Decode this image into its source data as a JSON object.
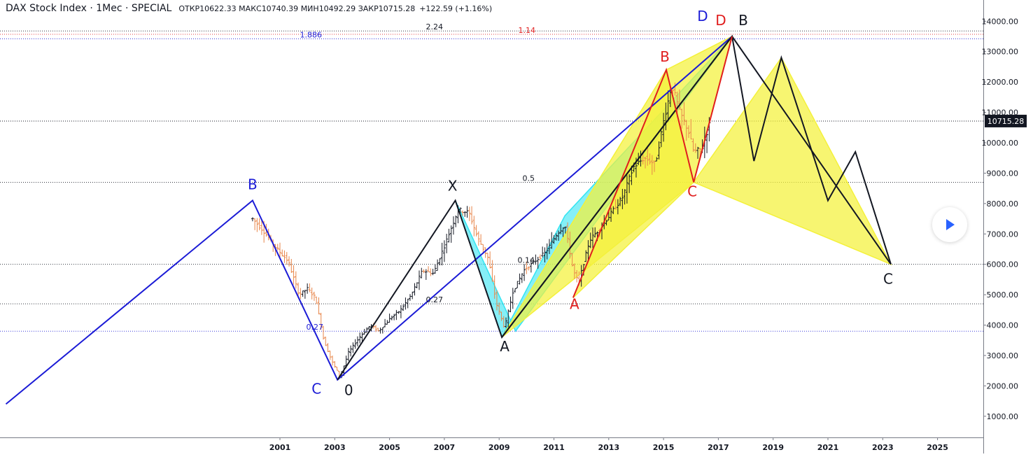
{
  "header": {
    "symbol": "DAX Stock Index · 1Мес · SPECIAL",
    "open_label": "ОТКР",
    "open": "10622.33",
    "high_label": "МАКС",
    "high": "10740.39",
    "low_label": "МИН",
    "low": "10492.29",
    "close_label": "ЗАКР",
    "close": "10715.28",
    "change": "+122.59 (+1.16%)"
  },
  "price_badge": "10715.28",
  "colors": {
    "up_bar": "#131722",
    "down_bar": "#e8864a",
    "blue": "#1b1bd6",
    "red": "#e01e1e",
    "black": "#131722",
    "yellow_fill": "#f4f13a",
    "cyan_fill": "#33e4f2"
  },
  "chart_data": {
    "type": "candlestick",
    "x_axis": {
      "type": "time",
      "ticks": [
        "2001",
        "2003",
        "2005",
        "2007",
        "2009",
        "2011",
        "2013",
        "2015",
        "2017",
        "2019",
        "2021",
        "2023",
        "2025"
      ]
    },
    "y_axis": {
      "position": "right",
      "ylim": [
        0,
        14700
      ],
      "ticks": [
        "1000.00",
        "2000.00",
        "3000.00",
        "4000.00",
        "5000.00",
        "6000.00",
        "7000.00",
        "8000.00",
        "9000.00",
        "10000.00",
        "11000.00",
        "12000.00",
        "13000.00",
        "14000.00"
      ]
    },
    "price_anchors": [
      [
        2000.0,
        7500
      ],
      [
        2000.4,
        7100
      ],
      [
        2000.8,
        6600
      ],
      [
        2001.3,
        6100
      ],
      [
        2001.7,
        5000
      ],
      [
        2002.0,
        5200
      ],
      [
        2002.3,
        4900
      ],
      [
        2002.6,
        3500
      ],
      [
        2002.9,
        2800
      ],
      [
        2003.2,
        2300
      ],
      [
        2003.5,
        3100
      ],
      [
        2003.9,
        3600
      ],
      [
        2004.3,
        4000
      ],
      [
        2004.6,
        3800
      ],
      [
        2005.0,
        4200
      ],
      [
        2005.4,
        4500
      ],
      [
        2005.8,
        5000
      ],
      [
        2006.2,
        5800
      ],
      [
        2006.6,
        5700
      ],
      [
        2007.0,
        6600
      ],
      [
        2007.5,
        7800
      ],
      [
        2007.9,
        7700
      ],
      [
        2008.2,
        6900
      ],
      [
        2008.6,
        6200
      ],
      [
        2008.9,
        4700
      ],
      [
        2009.2,
        3900
      ],
      [
        2009.5,
        5100
      ],
      [
        2009.9,
        5800
      ],
      [
        2010.3,
        6100
      ],
      [
        2010.7,
        6400
      ],
      [
        2011.1,
        7000
      ],
      [
        2011.4,
        7300
      ],
      [
        2011.7,
        5800
      ],
      [
        2011.9,
        5400
      ],
      [
        2012.3,
        6800
      ],
      [
        2012.7,
        7200
      ],
      [
        2013.1,
        7700
      ],
      [
        2013.5,
        8200
      ],
      [
        2013.9,
        9200
      ],
      [
        2014.3,
        9500
      ],
      [
        2014.7,
        9300
      ],
      [
        2015.0,
        10700
      ],
      [
        2015.3,
        11900
      ],
      [
        2015.6,
        11000
      ],
      [
        2015.9,
        10400
      ],
      [
        2016.1,
        9700
      ],
      [
        2016.4,
        9800
      ],
      [
        2016.7,
        10700
      ]
    ],
    "patterns": [
      {
        "name": "blue_XABCD",
        "color": "blue",
        "points": [
          [
            1991.0,
            1400
          ],
          [
            2000.0,
            8100
          ],
          [
            2003.1,
            2200
          ],
          [
            2017.5,
            13500
          ]
        ],
        "labels": [
          {
            "text": "B",
            "x": 2000.0,
            "y": 8100
          },
          {
            "text": "C",
            "x": 2003.1,
            "y": 2200
          },
          {
            "text": "D",
            "x": 2017.5,
            "y": 13500
          }
        ]
      },
      {
        "name": "black_ABC",
        "color": "black",
        "points": [
          [
            2003.1,
            2200
          ],
          [
            2007.4,
            8100
          ],
          [
            2009.1,
            3600
          ],
          [
            2017.5,
            13500
          ],
          [
            2018.3,
            9400
          ],
          [
            2019.3,
            12800
          ],
          [
            2021.0,
            8100
          ],
          [
            2022.0,
            9700
          ],
          [
            2023.3,
            6000
          ]
        ],
        "labels": [
          {
            "text": "0",
            "x": 2003.1,
            "y": 2200
          },
          {
            "text": "X",
            "x": 2007.4,
            "y": 8100
          },
          {
            "text": "A",
            "x": 2009.1,
            "y": 3600
          },
          {
            "text": "B",
            "x": 2017.5,
            "y": 13500
          },
          {
            "text": "C",
            "x": 2023.3,
            "y": 6000
          }
        ]
      },
      {
        "name": "black_channel",
        "color": "black",
        "points": [
          [
            2009.1,
            3600
          ],
          [
            2017.5,
            13500
          ],
          [
            2023.3,
            6000
          ]
        ]
      },
      {
        "name": "red_ABCD",
        "color": "red",
        "points": [
          [
            2011.7,
            4900
          ],
          [
            2015.1,
            12400
          ],
          [
            2016.1,
            8700
          ],
          [
            2017.5,
            13500
          ]
        ],
        "labels": [
          {
            "text": "A",
            "x": 2011.7,
            "y": 4900
          },
          {
            "text": "B",
            "x": 2015.1,
            "y": 12400
          },
          {
            "text": "C",
            "x": 2016.1,
            "y": 8700
          },
          {
            "text": "D",
            "x": 2017.5,
            "y": 13500
          }
        ]
      }
    ],
    "filled_patterns": [
      {
        "fill": "cyan",
        "points": [
          [
            2007.4,
            8100
          ],
          [
            2009.1,
            3600
          ],
          [
            2011.4,
            7600
          ],
          [
            2017.5,
            13500
          ],
          [
            2009.6,
            3800
          ]
        ]
      },
      {
        "fill": "yellow",
        "points": [
          [
            2009.1,
            3600
          ],
          [
            2015.1,
            12400
          ],
          [
            2016.1,
            8700
          ]
        ]
      },
      {
        "fill": "yellow",
        "points": [
          [
            2011.7,
            4900
          ],
          [
            2015.1,
            12400
          ],
          [
            2017.5,
            13500
          ],
          [
            2016.1,
            8700
          ]
        ]
      },
      {
        "fill": "yellow",
        "points": [
          [
            2016.1,
            8700
          ],
          [
            2019.3,
            12800
          ],
          [
            2023.3,
            6000
          ]
        ]
      }
    ],
    "fib_levels": [
      {
        "label": "2.24",
        "y": 13680,
        "color": "#131722"
      },
      {
        "label": "1.14",
        "y": 13570,
        "color": "#e01e1e"
      },
      {
        "label": "1.886",
        "y": 13420,
        "color": "#1b1bd6"
      },
      {
        "label": "0.5",
        "y": 8700,
        "color": "#131722"
      },
      {
        "label": "0.14",
        "y": 6000,
        "color": "#131722"
      },
      {
        "label": "0.27",
        "y": 4700,
        "color": "#131722"
      },
      {
        "label": "0.27",
        "y": 3800,
        "color": "#1b1bd6"
      }
    ],
    "last_price": 10715.28
  }
}
